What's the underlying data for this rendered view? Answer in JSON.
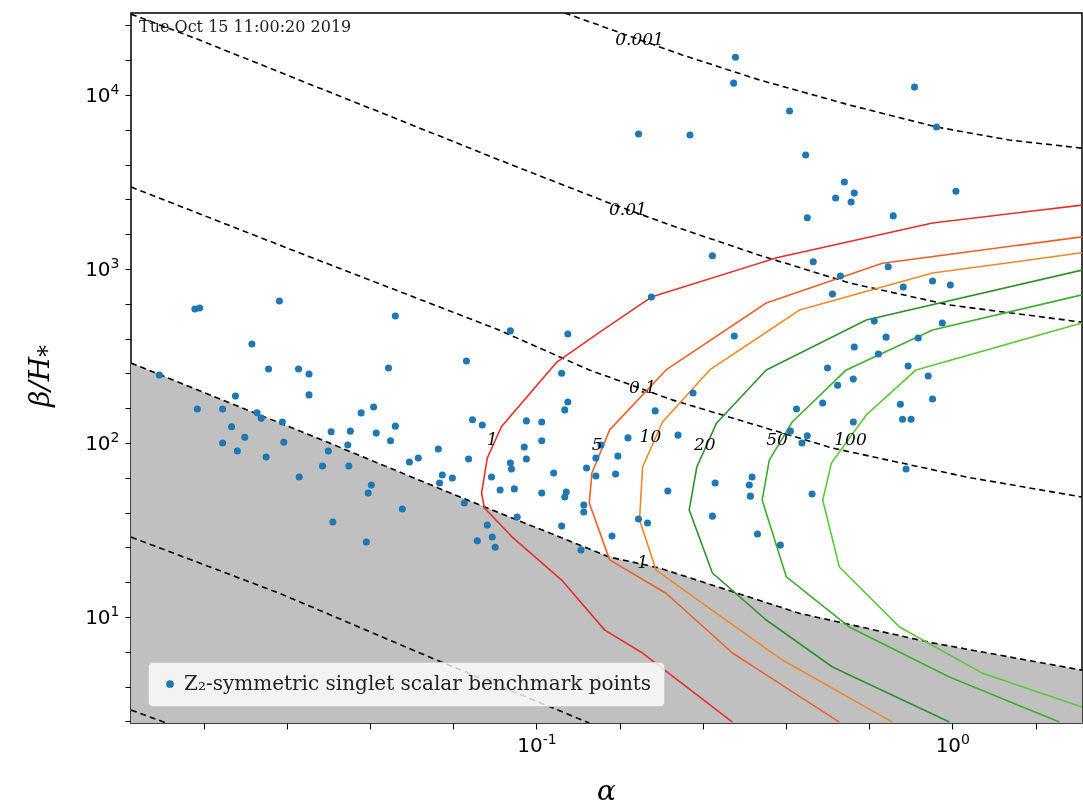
{
  "chart_data": {
    "type": "scatter",
    "xlabel": "α",
    "ylabel": "β/H$_{*}$",
    "log": "xy",
    "legend": "bottom left",
    "xlim": [
      0.0106,
      2.05
    ],
    "ylim": [
      2.46,
      29600
    ],
    "xticks": [
      {
        "value": 0.01585,
        "label": null
      },
      {
        "value": 0.02512,
        "label": null
      },
      {
        "value": 0.03981,
        "label": null
      },
      {
        "value": 0.0631,
        "label": null
      },
      {
        "value": 0.1,
        "label": "10$^{-1}$"
      },
      {
        "value": 0.1585,
        "label": null
      },
      {
        "value": 0.2512,
        "label": null
      },
      {
        "value": 0.3981,
        "label": null
      },
      {
        "value": 0.631,
        "label": null
      },
      {
        "value": 1,
        "label": "10$^{0}$"
      },
      {
        "value": 1.585,
        "label": null
      }
    ],
    "yticks": [
      {
        "value": 2.512,
        "label": null
      },
      {
        "value": 3.981,
        "label": null
      },
      {
        "value": 6.31,
        "label": null
      },
      {
        "value": 10,
        "label": "10$^{1}$"
      },
      {
        "value": 15.85,
        "label": null
      },
      {
        "value": 25.12,
        "label": null
      },
      {
        "value": 39.81,
        "label": null
      },
      {
        "value": 63.1,
        "label": null
      },
      {
        "value": 100,
        "label": "10$^{2}$"
      },
      {
        "value": 158.5,
        "label": null
      },
      {
        "value": 251.2,
        "label": null
      },
      {
        "value": 398.1,
        "label": null
      },
      {
        "value": 631,
        "label": null
      },
      {
        "value": 1000,
        "label": "10$^{3}$"
      },
      {
        "value": 1585,
        "label": null
      },
      {
        "value": 2512,
        "label": null
      },
      {
        "value": 3981,
        "label": null
      },
      {
        "value": 6310,
        "label": null
      },
      {
        "value": 10000,
        "label": "10$^{4}$"
      },
      {
        "value": 15850,
        "label": null
      },
      {
        "value": 25120,
        "label": null
      }
    ],
    "annotations": [
      "Tue Oct 15 11:00:20 2019",
      {
        "text": "0.001",
        "x": 0.177,
        "y": 20700
      },
      {
        "text": "0.01",
        "x": 0.166,
        "y": 2180
      },
      {
        "text": "0.1",
        "x": 0.18,
        "y": 207
      },
      {
        "text": "1",
        "x": 0.18,
        "y": 20.4
      },
      {
        "text": "1",
        "x": 0.0783,
        "y": 104
      },
      {
        "text": "5",
        "x": 0.14,
        "y": 97.4
      },
      {
        "text": "10",
        "x": 0.188,
        "y": 108
      },
      {
        "text": "20",
        "x": 0.254,
        "y": 97.4
      },
      {
        "text": "50",
        "x": 0.379,
        "y": 104
      },
      {
        "text": "100",
        "x": 0.569,
        "y": 104
      }
    ],
    "series": [
      {
        "type": "line",
        "line_style": "dashed",
        "color": "#000000",
        "x": [
          0.117,
          0.224,
          0.344,
          0.565,
          0.916,
          1.37,
          2.05
        ],
        "values": [
          29600,
          17000,
          12200,
          8770,
          6550,
          5510,
          4950
        ]
      },
      {
        "type": "line",
        "line_style": "dashed",
        "color": "#000000",
        "x": [
          0.0106,
          0.0155,
          0.0269,
          0.0469,
          0.0815,
          0.15,
          0.217,
          0.344,
          0.565,
          0.984,
          2.05
        ],
        "values": [
          29200,
          20700,
          12200,
          7180,
          4230,
          2390,
          1740,
          1200,
          832,
          621,
          495
        ]
      },
      {
        "type": "line",
        "line_style": "dashed",
        "color": "#000000",
        "x": [
          0.0106,
          0.0269,
          0.0802,
          0.134,
          0.212,
          0.515,
          1.08,
          2.05
        ],
        "values": [
          2960,
          1240,
          452,
          263,
          177,
          93.5,
          63.8,
          48.9
        ]
      },
      {
        "type": "line",
        "line_style": "dashed",
        "color": "#000000",
        "x": [
          0.0106,
          0.0241,
          0.0553,
          0.134
        ],
        "values": [
          28.8,
          13.7,
          5.89,
          2.46
        ]
      },
      {
        "type": "line",
        "line_style": "dashed",
        "color": "#000000",
        "x": [
          0.0106,
          0.0129
        ],
        "values": [
          2.92,
          2.46
        ]
      },
      {
        "type": "line",
        "line_style": "solid",
        "color": "#e8302a",
        "x": [
          2.05,
          0.896,
          0.378,
          0.189,
          0.142,
          0.112,
          0.0824,
          0.0762,
          0.0738,
          0.075,
          0.0875,
          0.115,
          0.146,
          0.18,
          0.296
        ],
        "values": [
          2330,
          1840,
          1160,
          690,
          434,
          292,
          124,
          82,
          51.6,
          42.3,
          28.8,
          16.3,
          8.41,
          6.21,
          2.49
        ]
      },
      {
        "type": "line",
        "line_style": "solid",
        "color": "#f0602a",
        "x": [
          2.05,
          0.679,
          0.357,
          0.205,
          0.15,
          0.136,
          0.134,
          0.15,
          0.205,
          0.296,
          0.535
        ],
        "values": [
          1530,
          1080,
          638,
          263,
          119,
          67.3,
          45.2,
          21.3,
          13.7,
          6.21,
          2.49
        ]
      },
      {
        "type": "line",
        "line_style": "solid",
        "color": "#ef8a2a",
        "x": [
          2.05,
          0.896,
          0.429,
          0.261,
          0.201,
          0.18,
          0.177,
          0.194,
          0.271,
          0.39,
          0.718
        ],
        "values": [
          1240,
          948,
          581,
          263,
          132,
          72.8,
          36.1,
          18.6,
          10.5,
          5.66,
          2.49
        ]
      },
      {
        "type": "line",
        "line_style": "solid",
        "color": "#2e922c",
        "x": [
          2.05,
          0.621,
          0.357,
          0.271,
          0.243,
          0.233,
          0.265,
          0.357,
          0.515,
          0.984
        ],
        "values": [
          986,
          509,
          263,
          130,
          72.8,
          41.2,
          17.9,
          9.61,
          5.16,
          2.49
        ]
      },
      {
        "type": "line",
        "line_style": "solid",
        "color": "#3fae30",
        "x": [
          2.05,
          0.896,
          0.556,
          0.412,
          0.363,
          0.349,
          0.399,
          0.565,
          0.984,
          1.81
        ],
        "values": [
          710,
          446,
          263,
          132,
          79.8,
          47,
          17,
          8.77,
          4.52,
          2.49
        ]
      },
      {
        "type": "line",
        "line_style": "solid",
        "color": "#5cc83a",
        "x": [
          2.05,
          0.818,
          0.621,
          0.512,
          0.488,
          0.535,
          0.746,
          1.18,
          2.05
        ],
        "values": [
          490,
          263,
          145,
          76.8,
          47,
          19.4,
          8.77,
          4.76,
          3.04
        ]
      },
      {
        "type": "area",
        "color": "#c0c0c0",
        "line_style": "dashed",
        "x": [
          0.0106,
          0.0318,
          0.0664,
          0.15,
          0.198,
          0.429,
          0.896,
          2.05
        ],
        "values": [
          288,
          100,
          48.3,
          22.1,
          19.1,
          10.5,
          7.1,
          4.95
        ]
      },
      {
        "type": "scatter",
        "name": "Z₂-symmetric singlet scalar benchmark points",
        "color": "#1f77b4",
        "marker": "circle",
        "x": [
          0.0151,
          0.0155,
          0.0241,
          0.0207,
          0.0458,
          0.0866,
          0.119,
          0.0679,
          0.0124,
          0.0227,
          0.0268,
          0.0284,
          0.0441,
          0.0284,
          0.0189,
          0.0153,
          0.0176,
          0.0406,
          0.0379,
          0.0213,
          0.0218,
          0.0245,
          0.0185,
          0.0199,
          0.0176,
          0.0247,
          0.0191,
          0.0224,
          0.0316,
          0.0306,
          0.0354,
          0.0321,
          0.0357,
          0.0352,
          0.0269,
          0.0412,
          0.0446,
          0.0458,
          0.0495,
          0.052,
          0.0581,
          0.0401,
          0.0394,
          0.0476,
          0.0324,
          0.039,
          0.0594,
          0.0585,
          0.0628,
          0.0671,
          0.0687,
          0.0702,
          0.0741,
          0.078,
          0.0818,
          0.0885,
          0.0899,
          0.0762,
          0.0721,
          0.0783,
          0.0796,
          0.0946,
          0.103,
          0.0935,
          0.103,
          0.0946,
          0.0866,
          0.0871,
          0.115,
          0.119,
          0.117,
          0.11,
          0.103,
          0.118,
          0.117,
          0.13,
          0.13,
          0.132,
          0.139,
          0.139,
          0.143,
          0.115,
          0.128,
          0.301,
          0.298,
          0.811,
          0.406,
          0.176,
          0.234,
          0.916,
          0.444,
          0.55,
          0.524,
          0.581,
          0.571,
          1.02,
          0.448,
          0.721,
          0.265,
          0.463,
          0.701,
          0.538,
          0.896,
          0.989,
          0.762,
          0.515,
          0.189,
          0.946,
          0.649,
          0.299,
          0.693,
          0.828,
          0.581,
          0.664,
          0.501,
          0.783,
          0.875,
          0.578,
          0.53,
          0.238,
          0.896,
          0.488,
          0.75,
          0.422,
          0.193,
          0.759,
          0.796,
          0.578,
          0.408,
          0.448,
          0.435,
          0.166,
          0.219,
          0.157,
          0.155,
          0.269,
          0.33,
          0.325,
          0.327,
          0.207,
          0.774,
          0.46,
          0.265,
          0.176,
          0.185,
          0.34,
          0.152,
          0.386
        ],
        "values": [
          589,
          597,
          655,
          371,
          537,
          441,
          423,
          296,
          246,
          266,
          266,
          249,
          270,
          189,
          186,
          157,
          157,
          161,
          149,
          149,
          139,
          132,
          124,
          108,
          100,
          101,
          90,
          83.1,
          90,
          73.8,
          73.8,
          116,
          117,
          97.4,
          63.8,
          114,
          103,
          125,
          77.8,
          82,
          92.4,
          57.4,
          51.6,
          41.8,
          35.2,
          27,
          65.5,
          58.9,
          63,
          45.2,
          80.9,
          136,
          127,
          63.8,
          53.7,
          54.5,
          37.6,
          33.8,
          27.4,
          28.8,
          25.2,
          134,
          132,
          94.9,
          103,
          80.9,
          76.8,
          70.9,
          252,
          172,
          155,
          67.3,
          51.6,
          52.3,
          48.9,
          44,
          40.1,
          71.8,
          64.6,
          82,
          97.4,
          33.3,
          24.3,
          16500,
          11700,
          11100,
          8090,
          5970,
          5890,
          6550,
          4520,
          3160,
          2560,
          2730,
          2430,
          2800,
          1970,
          2020,
          1190,
          1100,
          1030,
          912,
          853,
          809,
          788,
          718,
          690,
          490,
          502,
          412,
          406,
          401,
          356,
          325,
          270,
          277,
          243,
          233,
          215,
          194,
          179,
          170,
          167,
          157,
          153,
          137,
          137,
          132,
          117,
          110,
          100,
          107,
          111,
          84.1,
          66.4,
          58.9,
          63.8,
          57.4,
          49.5,
          53,
          70.9,
          50.9,
          38,
          36.6,
          34.7,
          30,
          29.2,
          25.9
        ]
      }
    ]
  }
}
